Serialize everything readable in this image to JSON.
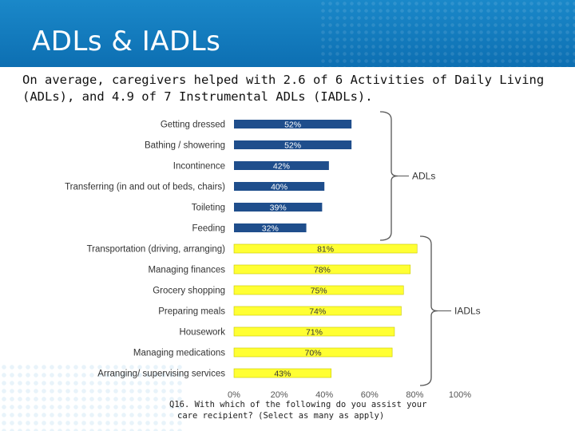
{
  "slide": {
    "title": "ADLs & IADLs",
    "subtitle": "On average, caregivers helped with 2.6 of 6 Activities of Daily Living (ADLs), and 4.9 of 7 Instrumental ADLs (IADLs).",
    "footnote_line1": "Q16. With which of the following do you assist your",
    "footnote_line2": "care recipient? (Select as many as apply)"
  },
  "chart_data": {
    "type": "bar",
    "orientation": "horizontal",
    "xlim": [
      0,
      100
    ],
    "x_ticks": [
      "0%",
      "20%",
      "40%",
      "60%",
      "80%",
      "100%"
    ],
    "groups": [
      {
        "name": "ADLs",
        "color": "#1f4e8c",
        "label_color": "#ffffff",
        "categories": [
          "Getting dressed",
          "Bathing / showering",
          "Incontinence",
          "Transferring (in and out of beds, chairs)",
          "Toileting",
          "Feeding"
        ],
        "values": [
          52,
          52,
          42,
          40,
          39,
          32
        ],
        "value_labels": [
          "52%",
          "52%",
          "42%",
          "40%",
          "39%",
          "32%"
        ]
      },
      {
        "name": "IADLs",
        "color": "#ffff33",
        "label_color": "#333333",
        "categories": [
          "Transportation (driving, arranging)",
          "Managing finances",
          "Grocery shopping",
          "Preparing meals",
          "Housework",
          "Managing medications",
          "Arranging/ supervising services"
        ],
        "values": [
          81,
          78,
          75,
          74,
          71,
          70,
          43
        ],
        "value_labels": [
          "81%",
          "78%",
          "75%",
          "74%",
          "71%",
          "70%",
          "43%"
        ]
      }
    ]
  }
}
